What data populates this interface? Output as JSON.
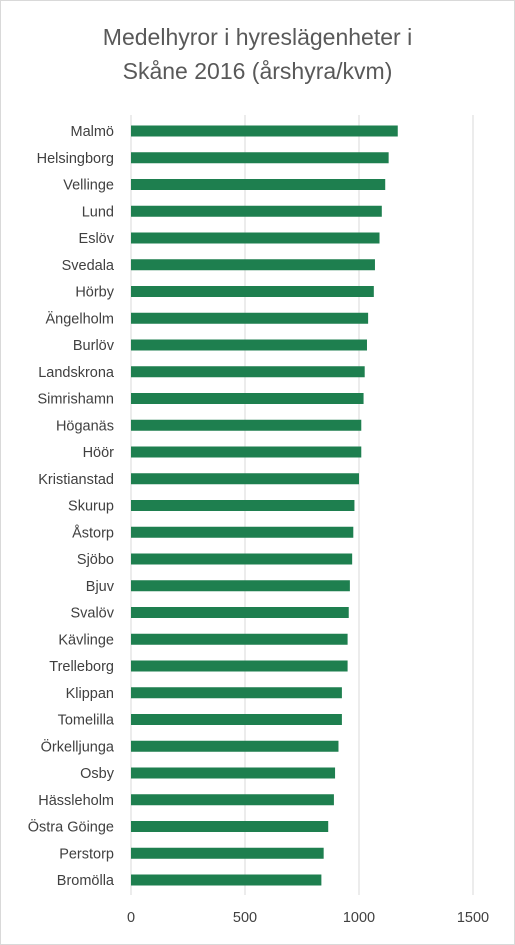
{
  "chart_data": {
    "type": "bar",
    "orientation": "horizontal",
    "title_line1": "Medelhyror i hyreslägenheter i",
    "title_line2": "Skåne 2016 (årshyra/kvm)",
    "xlabel": "",
    "ylabel": "",
    "xlim": [
      0,
      1500
    ],
    "xticks": [
      "0",
      "500",
      "1000",
      "1500"
    ],
    "grid": "vertical",
    "legend": "none",
    "bar_color": "#1e7f4f",
    "grid_color": "#d9d9d9",
    "categories": [
      "Malmö",
      "Helsingborg",
      "Vellinge",
      "Lund",
      "Eslöv",
      "Svedala",
      "Hörby",
      "Ängelholm",
      "Burlöv",
      "Landskrona",
      "Simrishamn",
      "Höganäs",
      "Höör",
      "Kristianstad",
      "Skurup",
      "Åstorp",
      "Sjöbo",
      "Bjuv",
      "Svalöv",
      "Kävlinge",
      "Trelleborg",
      "Klippan",
      "Tomelilla",
      "Örkelljunga",
      "Osby",
      "Hässleholm",
      "Östra Göinge",
      "Perstorp",
      "Bromölla"
    ],
    "values": [
      1170,
      1130,
      1115,
      1100,
      1090,
      1070,
      1065,
      1040,
      1035,
      1025,
      1020,
      1010,
      1010,
      1000,
      980,
      975,
      970,
      960,
      955,
      950,
      950,
      925,
      925,
      910,
      895,
      890,
      865,
      845,
      835
    ]
  }
}
